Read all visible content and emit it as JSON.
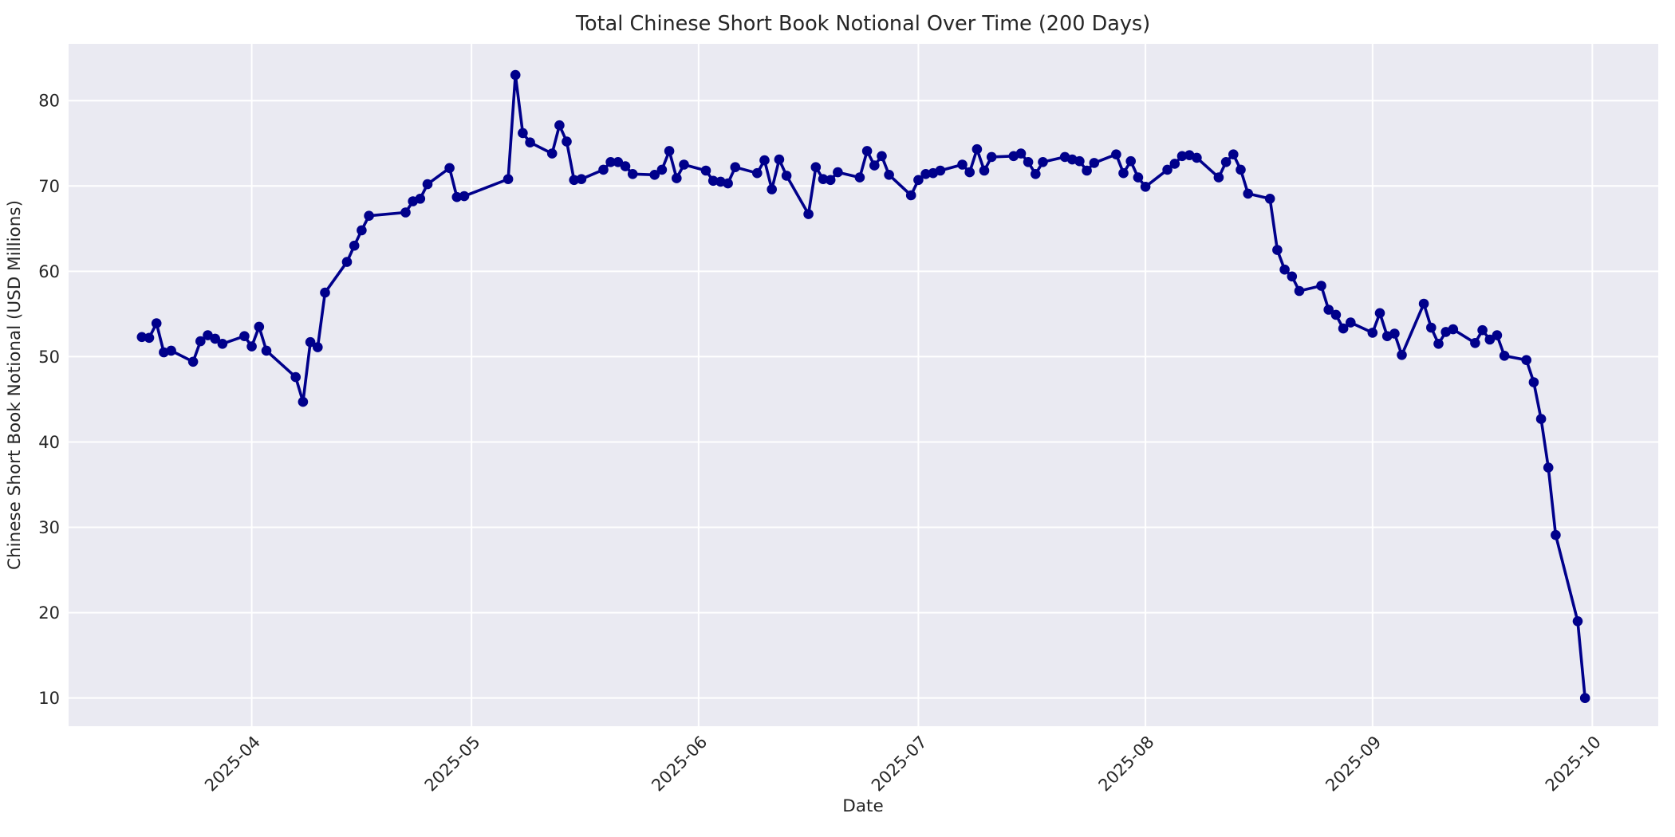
{
  "chart_data": {
    "type": "line",
    "title": "Total Chinese Short Book Notional Over Time (200 Days)",
    "xlabel": "Date",
    "ylabel": "Chinese Short Book Notional (USD Millions)",
    "legend": false,
    "grid": true,
    "marker": "circle",
    "line_color": "#00008B",
    "plot_bg": "#EAEAF2",
    "grid_color": "#FFFFFF",
    "text_color": "#262626",
    "x_ticks": [
      "2025-04",
      "2025-05",
      "2025-06",
      "2025-07",
      "2025-08",
      "2025-09",
      "2025-10"
    ],
    "y_ticks": [
      10,
      20,
      30,
      40,
      50,
      60,
      70,
      80
    ],
    "x_range": [
      "2025-03-07",
      "2025-10-10"
    ],
    "y_range": [
      6.7,
      86.65
    ],
    "x": [
      "2025-03-17",
      "2025-03-18",
      "2025-03-19",
      "2025-03-20",
      "2025-03-21",
      "2025-03-24",
      "2025-03-25",
      "2025-03-26",
      "2025-03-27",
      "2025-03-28",
      "2025-03-31",
      "2025-04-01",
      "2025-04-02",
      "2025-04-03",
      "2025-04-07",
      "2025-04-08",
      "2025-04-09",
      "2025-04-10",
      "2025-04-11",
      "2025-04-14",
      "2025-04-15",
      "2025-04-16",
      "2025-04-17",
      "2025-04-22",
      "2025-04-23",
      "2025-04-24",
      "2025-04-25",
      "2025-04-28",
      "2025-04-29",
      "2025-04-30",
      "2025-05-06",
      "2025-05-07",
      "2025-05-08",
      "2025-05-09",
      "2025-05-12",
      "2025-05-13",
      "2025-05-14",
      "2025-05-15",
      "2025-05-16",
      "2025-05-19",
      "2025-05-20",
      "2025-05-21",
      "2025-05-22",
      "2025-05-23",
      "2025-05-26",
      "2025-05-27",
      "2025-05-28",
      "2025-05-29",
      "2025-05-30",
      "2025-06-02",
      "2025-06-03",
      "2025-06-04",
      "2025-06-05",
      "2025-06-06",
      "2025-06-09",
      "2025-06-10",
      "2025-06-11",
      "2025-06-12",
      "2025-06-13",
      "2025-06-16",
      "2025-06-17",
      "2025-06-18",
      "2025-06-19",
      "2025-06-20",
      "2025-06-23",
      "2025-06-24",
      "2025-06-25",
      "2025-06-26",
      "2025-06-27",
      "2025-06-30",
      "2025-07-01",
      "2025-07-02",
      "2025-07-03",
      "2025-07-04",
      "2025-07-07",
      "2025-07-08",
      "2025-07-09",
      "2025-07-10",
      "2025-07-11",
      "2025-07-14",
      "2025-07-15",
      "2025-07-16",
      "2025-07-17",
      "2025-07-18",
      "2025-07-21",
      "2025-07-22",
      "2025-07-23",
      "2025-07-24",
      "2025-07-25",
      "2025-07-28",
      "2025-07-29",
      "2025-07-30",
      "2025-07-31",
      "2025-08-01",
      "2025-08-04",
      "2025-08-05",
      "2025-08-06",
      "2025-08-07",
      "2025-08-08",
      "2025-08-11",
      "2025-08-12",
      "2025-08-13",
      "2025-08-14",
      "2025-08-15",
      "2025-08-18",
      "2025-08-19",
      "2025-08-20",
      "2025-08-21",
      "2025-08-22",
      "2025-08-25",
      "2025-08-26",
      "2025-08-27",
      "2025-08-28",
      "2025-08-29",
      "2025-09-01",
      "2025-09-02",
      "2025-09-03",
      "2025-09-04",
      "2025-09-05",
      "2025-09-08",
      "2025-09-09",
      "2025-09-10",
      "2025-09-11",
      "2025-09-12",
      "2025-09-15",
      "2025-09-16",
      "2025-09-17",
      "2025-09-18",
      "2025-09-19",
      "2025-09-22",
      "2025-09-23",
      "2025-09-24",
      "2025-09-25",
      "2025-09-26",
      "2025-09-29",
      "2025-09-30"
    ],
    "y": [
      52.3,
      52.2,
      53.9,
      50.5,
      50.7,
      49.4,
      51.8,
      52.5,
      52.1,
      51.5,
      52.4,
      51.2,
      53.5,
      50.7,
      47.6,
      44.7,
      51.7,
      51.1,
      57.5,
      61.1,
      63.0,
      64.8,
      66.5,
      66.9,
      68.2,
      68.5,
      70.2,
      72.1,
      68.7,
      68.8,
      70.8,
      83.0,
      76.2,
      75.1,
      73.8,
      77.1,
      75.2,
      70.7,
      70.8,
      71.9,
      72.8,
      72.8,
      72.3,
      71.4,
      71.3,
      71.9,
      74.1,
      70.9,
      72.5,
      71.8,
      70.6,
      70.5,
      70.3,
      72.2,
      71.5,
      73.0,
      69.6,
      73.1,
      71.2,
      66.7,
      72.2,
      70.8,
      70.7,
      71.6,
      71.0,
      74.1,
      72.4,
      73.5,
      71.3,
      68.9,
      70.7,
      71.4,
      71.5,
      71.8,
      72.5,
      71.6,
      74.3,
      71.8,
      73.4,
      73.5,
      73.8,
      72.8,
      71.4,
      72.8,
      73.4,
      73.1,
      72.9,
      71.8,
      72.7,
      73.7,
      71.5,
      72.9,
      71.0,
      69.9,
      71.9,
      72.6,
      73.5,
      73.6,
      73.3,
      71.0,
      72.8,
      73.7,
      71.9,
      69.1,
      68.5,
      62.5,
      60.2,
      59.4,
      57.7,
      58.3,
      55.5,
      54.9,
      53.3,
      54.0,
      52.8,
      55.1,
      52.4,
      52.7,
      50.2,
      56.2,
      53.4,
      51.5,
      52.9,
      53.2,
      51.6,
      53.1,
      52.0,
      52.5,
      50.1,
      49.6,
      47.0,
      42.7,
      37.0,
      29.1,
      19.0,
      10.0
    ]
  }
}
